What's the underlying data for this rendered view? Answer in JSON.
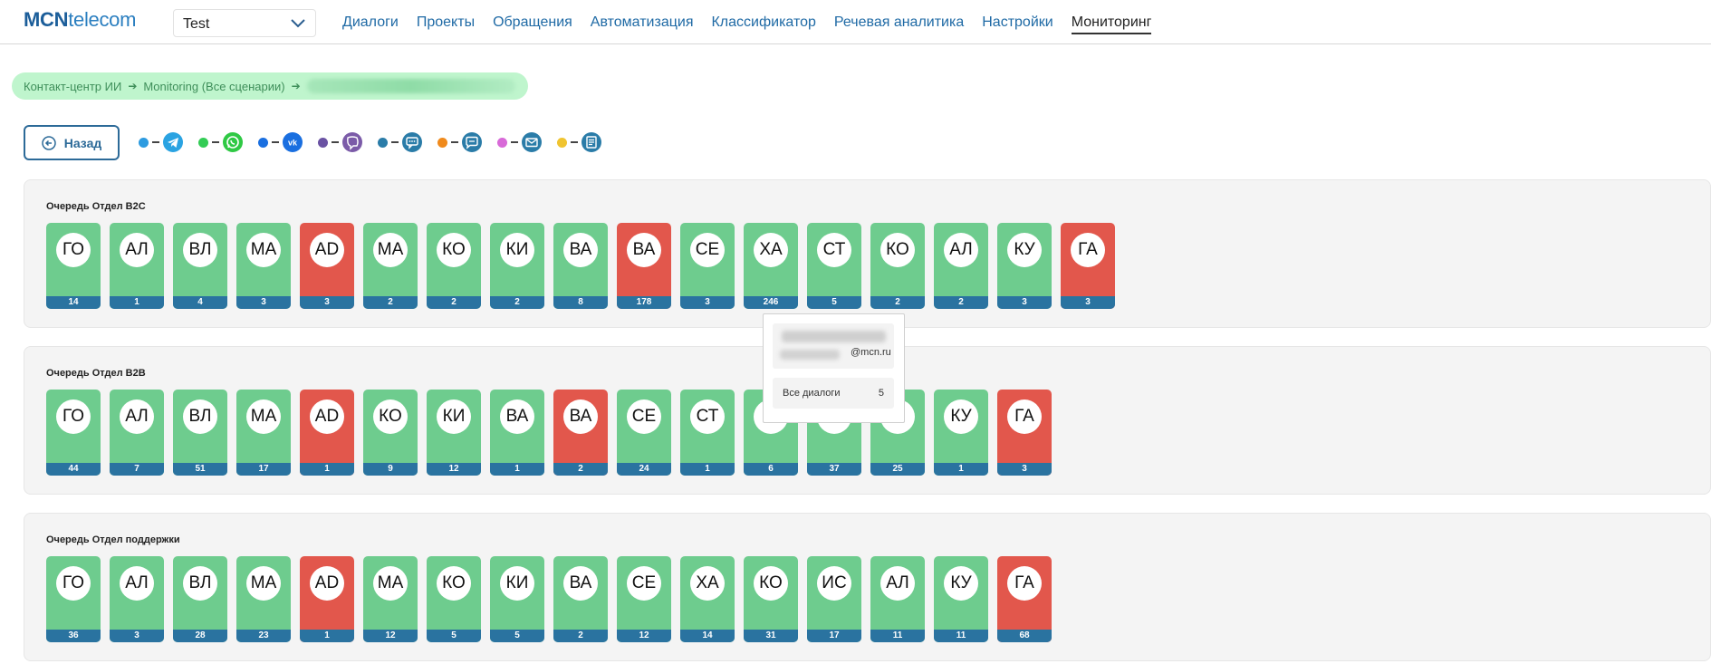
{
  "header": {
    "logo_bold": "MCN",
    "logo_rest": "telecom",
    "project_select": "Test",
    "tabs": [
      {
        "label": "Диалоги",
        "active": false
      },
      {
        "label": "Проекты",
        "active": false
      },
      {
        "label": "Обращения",
        "active": false
      },
      {
        "label": "Автоматизация",
        "active": false
      },
      {
        "label": "Классификатор",
        "active": false
      },
      {
        "label": "Речевая аналитика",
        "active": false
      },
      {
        "label": "Настройки",
        "active": false
      },
      {
        "label": "Мониторинг",
        "active": true
      }
    ]
  },
  "breadcrumb": [
    "Контакт-центр ИИ",
    "Monitoring (Все сценарии)"
  ],
  "back_label": "Назад",
  "channels": [
    {
      "dot": "#2d9be0",
      "icon": "telegram-icon",
      "bg": "#2aa3e2"
    },
    {
      "dot": "#33cc55",
      "icon": "whatsapp-icon",
      "bg": "#2fc944"
    },
    {
      "dot": "#1a6fe0",
      "icon": "vk-icon",
      "bg": "#1a6fe0"
    },
    {
      "dot": "#6a52a3",
      "icon": "viber-icon",
      "bg": "#7b5ba8"
    },
    {
      "dot": "#2a7ca8",
      "icon": "chat-icon",
      "bg": "#2a7ca8"
    },
    {
      "dot": "#f08a1c",
      "icon": "message-icon",
      "bg": "#2a7ca8"
    },
    {
      "dot": "#d86ad8",
      "icon": "mail-icon",
      "bg": "#2a7ca8"
    },
    {
      "dot": "#f0c430",
      "icon": "document-icon",
      "bg": "#2a7ca8"
    }
  ],
  "queues": [
    {
      "title": "Очередь Отдел B2C",
      "agents": [
        {
          "initials": "ГО",
          "count": "14",
          "status": "green"
        },
        {
          "initials": "АЛ",
          "count": "1",
          "status": "green"
        },
        {
          "initials": "ВЛ",
          "count": "4",
          "status": "green"
        },
        {
          "initials": "МА",
          "count": "3",
          "status": "green"
        },
        {
          "initials": "AD",
          "count": "3",
          "status": "red"
        },
        {
          "initials": "МА",
          "count": "2",
          "status": "green"
        },
        {
          "initials": "КО",
          "count": "2",
          "status": "green"
        },
        {
          "initials": "КИ",
          "count": "2",
          "status": "green"
        },
        {
          "initials": "ВА",
          "count": "8",
          "status": "green"
        },
        {
          "initials": "ВА",
          "count": "178",
          "status": "red"
        },
        {
          "initials": "СЕ",
          "count": "3",
          "status": "green"
        },
        {
          "initials": "ХА",
          "count": "246",
          "status": "green"
        },
        {
          "initials": "СТ",
          "count": "5",
          "status": "green"
        },
        {
          "initials": "КО",
          "count": "2",
          "status": "green"
        },
        {
          "initials": "АЛ",
          "count": "2",
          "status": "green"
        },
        {
          "initials": "КУ",
          "count": "3",
          "status": "green"
        },
        {
          "initials": "ГА",
          "count": "3",
          "status": "red"
        }
      ]
    },
    {
      "title": "Очередь Отдел B2B",
      "agents": [
        {
          "initials": "ГО",
          "count": "44",
          "status": "green"
        },
        {
          "initials": "АЛ",
          "count": "7",
          "status": "green"
        },
        {
          "initials": "ВЛ",
          "count": "51",
          "status": "green"
        },
        {
          "initials": "МА",
          "count": "17",
          "status": "green"
        },
        {
          "initials": "AD",
          "count": "1",
          "status": "red"
        },
        {
          "initials": "КО",
          "count": "9",
          "status": "green"
        },
        {
          "initials": "КИ",
          "count": "12",
          "status": "green"
        },
        {
          "initials": "ВА",
          "count": "1",
          "status": "green"
        },
        {
          "initials": "ВА",
          "count": "2",
          "status": "red"
        },
        {
          "initials": "СЕ",
          "count": "24",
          "status": "green"
        },
        {
          "initials": "СТ",
          "count": "1",
          "status": "green"
        },
        {
          "initials": "",
          "count": "6",
          "status": "green"
        },
        {
          "initials": "",
          "count": "37",
          "status": "green"
        },
        {
          "initials": "",
          "count": "25",
          "status": "green"
        },
        {
          "initials": "КУ",
          "count": "1",
          "status": "green"
        },
        {
          "initials": "ГА",
          "count": "3",
          "status": "red"
        }
      ]
    },
    {
      "title": "Очередь Отдел поддержки",
      "agents": [
        {
          "initials": "ГО",
          "count": "36",
          "status": "green"
        },
        {
          "initials": "АЛ",
          "count": "3",
          "status": "green"
        },
        {
          "initials": "ВЛ",
          "count": "28",
          "status": "green"
        },
        {
          "initials": "МА",
          "count": "23",
          "status": "green"
        },
        {
          "initials": "AD",
          "count": "1",
          "status": "red"
        },
        {
          "initials": "МА",
          "count": "12",
          "status": "green"
        },
        {
          "initials": "КО",
          "count": "5",
          "status": "green"
        },
        {
          "initials": "КИ",
          "count": "5",
          "status": "green"
        },
        {
          "initials": "ВА",
          "count": "2",
          "status": "green"
        },
        {
          "initials": "СЕ",
          "count": "12",
          "status": "green"
        },
        {
          "initials": "ХА",
          "count": "14",
          "status": "green"
        },
        {
          "initials": "КО",
          "count": "31",
          "status": "green"
        },
        {
          "initials": "ИС",
          "count": "17",
          "status": "green"
        },
        {
          "initials": "АЛ",
          "count": "11",
          "status": "green"
        },
        {
          "initials": "КУ",
          "count": "11",
          "status": "green"
        },
        {
          "initials": "ГА",
          "count": "68",
          "status": "red"
        }
      ]
    }
  ],
  "tooltip": {
    "email_suffix": "@mcn.ru",
    "all_dialogs_label": "Все диалоги",
    "all_dialogs_count": "5"
  }
}
